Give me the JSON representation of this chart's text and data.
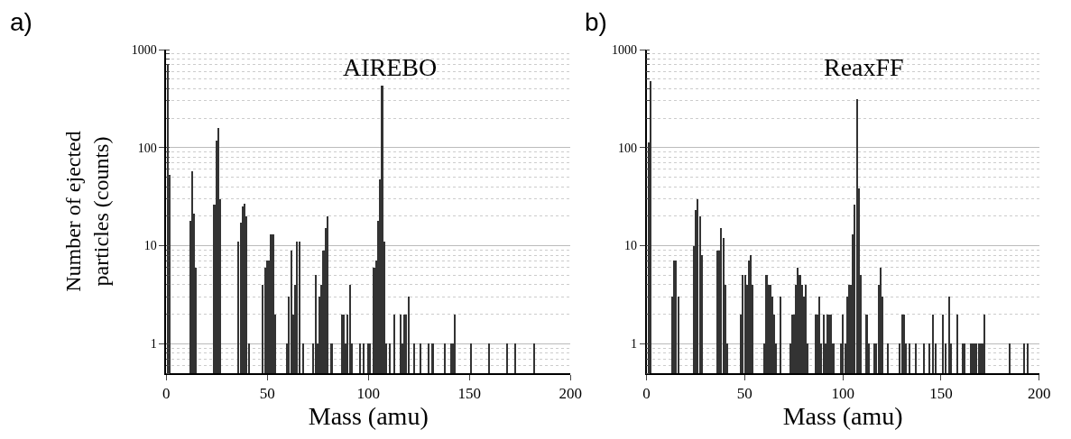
{
  "chart_data": [
    {
      "type": "bar",
      "title": "AIREBO",
      "xlabel": "Mass (amu)",
      "ylabel": "Number of ejected\nparticles (counts)",
      "annotations": [
        "a)"
      ],
      "x": [
        1,
        2,
        12,
        13,
        14,
        15,
        24,
        25,
        26,
        27,
        36,
        37,
        38,
        39,
        40,
        41,
        48,
        49,
        50,
        51,
        52,
        53,
        54,
        60,
        61,
        62,
        63,
        64,
        65,
        66,
        68,
        73,
        74,
        75,
        76,
        77,
        78,
        79,
        80,
        82,
        87,
        88,
        89,
        90,
        91,
        92,
        96,
        98,
        100,
        101,
        103,
        104,
        105,
        106,
        107,
        108,
        109,
        111,
        113,
        116,
        117,
        118,
        119,
        120,
        123,
        126,
        130,
        132,
        138,
        141,
        142,
        143,
        151,
        160,
        169,
        173,
        182
      ],
      "values": [
        700,
        53,
        18,
        57,
        21,
        6,
        26,
        117,
        160,
        30,
        11,
        17,
        25,
        27,
        20,
        1,
        4,
        6,
        7,
        7,
        13,
        13,
        2,
        1,
        3,
        9,
        2,
        4,
        11,
        11,
        1,
        1,
        5,
        1,
        3,
        4,
        9,
        15,
        20,
        1,
        2,
        2,
        1,
        2,
        4,
        1,
        1,
        1,
        1,
        1,
        6,
        7,
        18,
        47,
        430,
        11,
        1,
        1,
        2,
        2,
        1,
        2,
        2,
        3,
        1,
        1,
        1,
        1,
        1,
        1,
        1,
        2,
        1,
        1,
        1,
        1,
        1
      ],
      "color": "#333333",
      "log": "y",
      "xlim": [
        0,
        200
      ],
      "xticks": [
        0,
        50,
        100,
        150,
        200
      ],
      "ylim": [
        0.5,
        1000
      ],
      "yticks": [
        1,
        10,
        100,
        1000
      ],
      "grid": "y"
    },
    {
      "type": "bar",
      "title": "ReaxFF",
      "xlabel": "Mass (amu)",
      "annotations": [
        "b)"
      ],
      "x": [
        1,
        2,
        13,
        14,
        15,
        16,
        24,
        25,
        26,
        27,
        28,
        36,
        37,
        38,
        39,
        40,
        41,
        48,
        49,
        50,
        51,
        52,
        53,
        54,
        60,
        61,
        62,
        63,
        64,
        65,
        66,
        68,
        73,
        74,
        75,
        76,
        77,
        78,
        79,
        80,
        81,
        82,
        86,
        87,
        88,
        89,
        90,
        91,
        92,
        93,
        94,
        95,
        99,
        100,
        101,
        102,
        103,
        104,
        105,
        106,
        107,
        108,
        109,
        112,
        113,
        116,
        117,
        118,
        119,
        120,
        123,
        129,
        130,
        131,
        132,
        134,
        137,
        141,
        144,
        146,
        147,
        151,
        152,
        154,
        155,
        158,
        161,
        162,
        165,
        166,
        167,
        168,
        169,
        170,
        171,
        172,
        185,
        192,
        194
      ],
      "values": [
        112,
        475,
        3,
        7,
        7,
        3,
        10,
        23,
        30,
        20,
        8,
        9,
        9,
        15,
        12,
        4,
        1,
        2,
        5,
        5,
        4,
        7,
        8,
        4,
        1,
        5,
        4,
        4,
        3,
        2,
        1,
        3,
        1,
        2,
        2,
        4,
        6,
        5,
        4,
        3,
        4,
        1,
        2,
        2,
        3,
        1,
        2,
        1,
        2,
        2,
        2,
        1,
        1,
        2,
        1,
        3,
        4,
        4,
        13,
        26,
        310,
        38,
        5,
        2,
        1,
        1,
        1,
        4,
        6,
        3,
        1,
        1,
        2,
        2,
        1,
        1,
        1,
        1,
        1,
        2,
        1,
        2,
        1,
        3,
        1,
        2,
        1,
        1,
        1,
        1,
        1,
        1,
        1,
        1,
        1,
        2,
        1,
        1,
        1
      ],
      "color": "#333333",
      "log": "y",
      "xlim": [
        0,
        200
      ],
      "xticks": [
        0,
        50,
        100,
        150,
        200
      ],
      "ylim": [
        0.5,
        1000
      ],
      "yticks": [
        1,
        10,
        100,
        1000
      ],
      "grid": "y"
    }
  ]
}
